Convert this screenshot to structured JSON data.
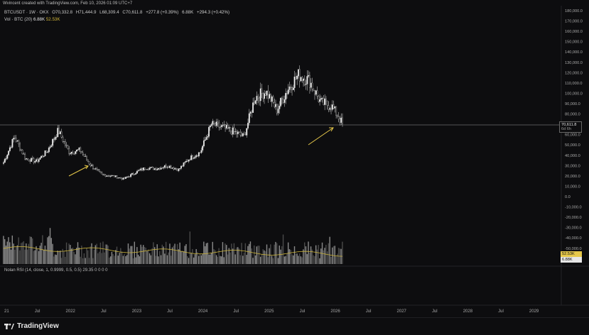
{
  "header": {
    "credit": "Wvincent created with TradingView.com, Feb 10, 2026 01:09 UTC+7",
    "symbol": "BTCUSDT · 1W · OKX",
    "o": "O70,332.8",
    "h": "H71,444.9",
    "l": "L68,309.4",
    "c": "C70,611.8",
    "chg": "+277.8 (+0.39%)",
    "vol_label": "Vol · BTC (20)",
    "vol_val1": "6.88K",
    "vol_val2": "52.53K",
    "rsi_label": "Nolan RSI (14, close, 1, 0.9999, 0.5, 0.5) 29.35 0 0 0 0",
    "vol_extra": "6.88K",
    "vol_extra_chg": "+294.3 (+0.42%)"
  },
  "price_axis": {
    "labels": [
      "180,000.0",
      "170,000.0",
      "160,000.0",
      "150,000.0",
      "140,000.0",
      "130,000.0",
      "120,000.0",
      "110,000.0",
      "100,000.0",
      "90,000.0",
      "80,000.0",
      "60,000.0",
      "50,000.0",
      "40,000.0",
      "30,000.0",
      "20,000.0",
      "10,000.0",
      "0.0",
      "-10,000.0",
      "-20,000.0",
      "-30,000.0",
      "-40,000.0"
    ],
    "current_price": "70,611.8",
    "current_time": "6d 6h",
    "vol_tag_1": "52.53K",
    "vol_tag_2": "6.88K",
    "bottom_label": "-50,000.0"
  },
  "time_axis": {
    "labels": [
      "21",
      "Jul",
      "2022",
      "Jul",
      "2023",
      "Jul",
      "2024",
      "Jul",
      "2025",
      "Jul",
      "2026",
      "Jul",
      "2027",
      "Jul",
      "2028",
      "Jul",
      "2029"
    ]
  },
  "footer": {
    "brand": "TradingView"
  },
  "chart_data": {
    "type": "line",
    "series": [
      {
        "x": [
          "2021-01",
          "2021-03",
          "2021-05",
          "2021-07",
          "2021-09",
          "2021-11",
          "2022-01",
          "2022-03",
          "2022-05",
          "2022-07",
          "2022-09",
          "2022-11",
          "2023-01",
          "2023-03",
          "2023-05",
          "2023-07",
          "2023-09",
          "2023-11",
          "2024-01",
          "2024-03",
          "2024-05",
          "2024-07",
          "2024-09",
          "2024-11",
          "2025-01",
          "2025-03",
          "2025-05",
          "2025-07",
          "2025-09",
          "2025-11",
          "2026-01",
          "2026-02"
        ],
        "values": [
          33000,
          58000,
          37000,
          34000,
          44000,
          64000,
          43000,
          45000,
          30000,
          21000,
          20000,
          17000,
          23000,
          28000,
          27000,
          30000,
          26000,
          37000,
          43000,
          70000,
          67000,
          63000,
          58000,
          96000,
          102000,
          84000,
          104000,
          118000,
          112000,
          91000,
          88000,
          70611
        ]
      }
    ],
    "ylim": [
      -50000,
      180000
    ],
    "current_price": 70611.8
  }
}
